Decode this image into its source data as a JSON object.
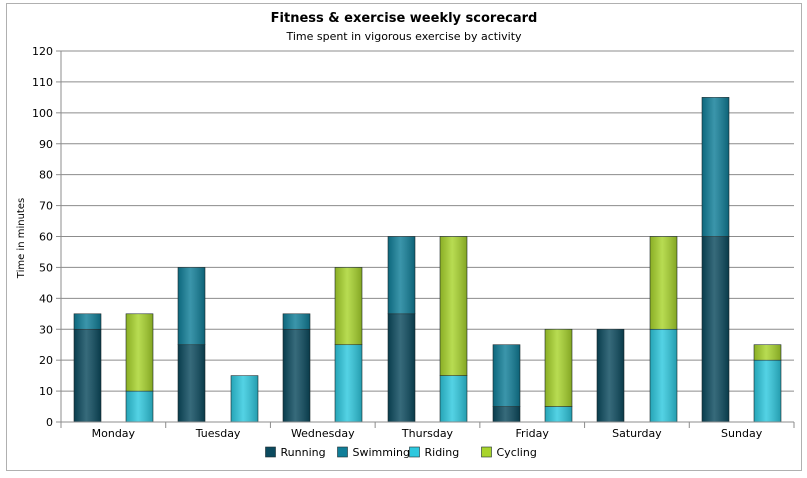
{
  "chart_data": {
    "type": "bar",
    "stacked": true,
    "title": "Fitness & exercise weekly scorecard",
    "subtitle": "Time spent in vigorous exercise by activity",
    "xlabel": "",
    "ylabel": "Time in minutes",
    "ylim": [
      0,
      120
    ],
    "ytick_step": 10,
    "grid": true,
    "legend_position": "bottom",
    "categories": [
      "Monday",
      "Tuesday",
      "Wednesday",
      "Thursday",
      "Friday",
      "Saturday",
      "Sunday"
    ],
    "stacks": [
      {
        "id": "A",
        "series": [
          "Running",
          "Swimming"
        ]
      },
      {
        "id": "B",
        "series": [
          "Riding",
          "Cycling"
        ]
      }
    ],
    "series": [
      {
        "name": "Running",
        "stack": "A",
        "color": "#0b4a5e",
        "values": [
          30,
          25,
          30,
          35,
          5,
          30,
          60
        ]
      },
      {
        "name": "Swimming",
        "stack": "A",
        "color": "#107e98",
        "values": [
          5,
          25,
          5,
          25,
          20,
          0,
          45
        ]
      },
      {
        "name": "Riding",
        "stack": "B",
        "color": "#2ec8de",
        "values": [
          10,
          15,
          25,
          15,
          5,
          30,
          20
        ]
      },
      {
        "name": "Cycling",
        "stack": "B",
        "color": "#a8d42c",
        "values": [
          25,
          0,
          25,
          45,
          25,
          30,
          5
        ]
      }
    ]
  }
}
